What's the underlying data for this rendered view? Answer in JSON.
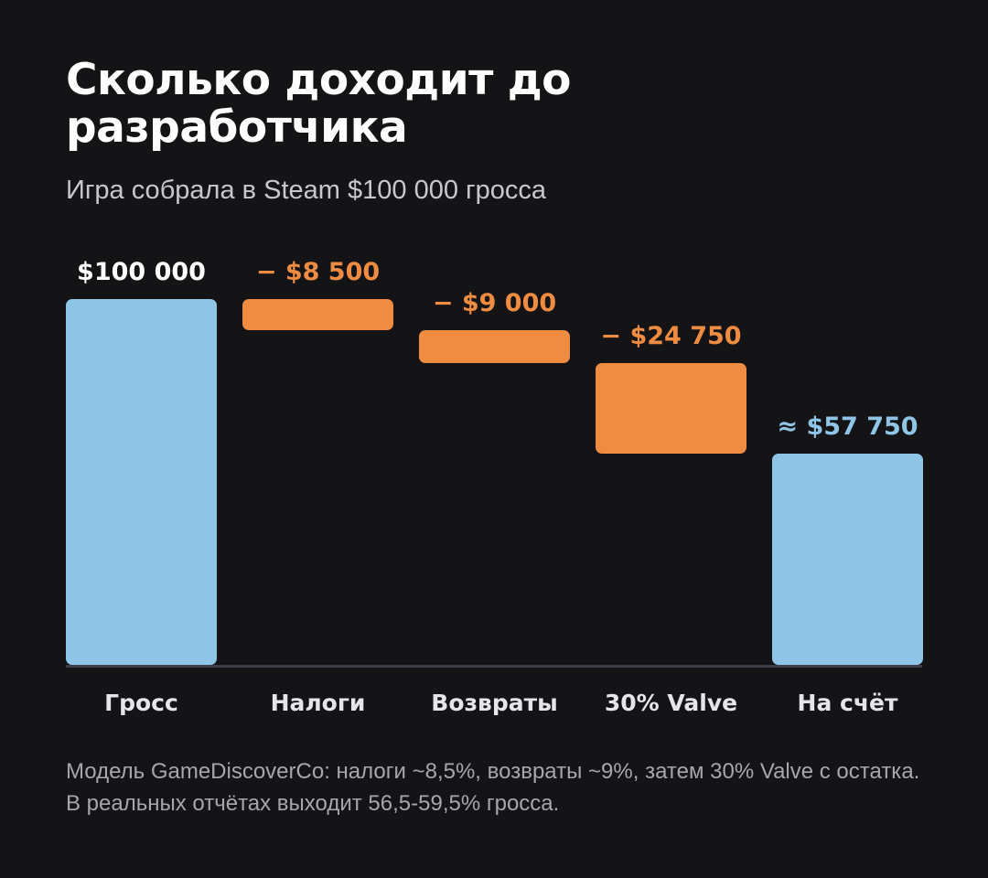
{
  "title": "Сколько доходит до разработчика",
  "subtitle": "Игра собрала в Steam $100 000 гросса",
  "footnote": "Модель GameDiscoverCo: налоги ~8,5%, возвраты ~9%, затем 30% Valve с остатка. В реальных отчётах выходит 56,5-59,5% гросса.",
  "colors": {
    "total": "#8fc6e8",
    "deduction": "#f08c41",
    "value_label_gross": "#ffffff",
    "axis_label": "#e6e6ea"
  },
  "chart_data": {
    "type": "bar",
    "subtype": "waterfall",
    "categories": [
      "Гросс",
      "Налоги",
      "Возвраты",
      "30% Valve",
      "На счёт"
    ],
    "values": [
      100000,
      -8500,
      -9000,
      -24750,
      57750
    ],
    "kinds": [
      "total",
      "deduction",
      "deduction",
      "deduction",
      "total"
    ],
    "value_labels": [
      "$100 000",
      "− $8 500",
      "− $9 000",
      "− $24 750",
      "≈ $57 750"
    ],
    "ylim": [
      0,
      100000
    ],
    "grid": false,
    "legend": "none"
  }
}
